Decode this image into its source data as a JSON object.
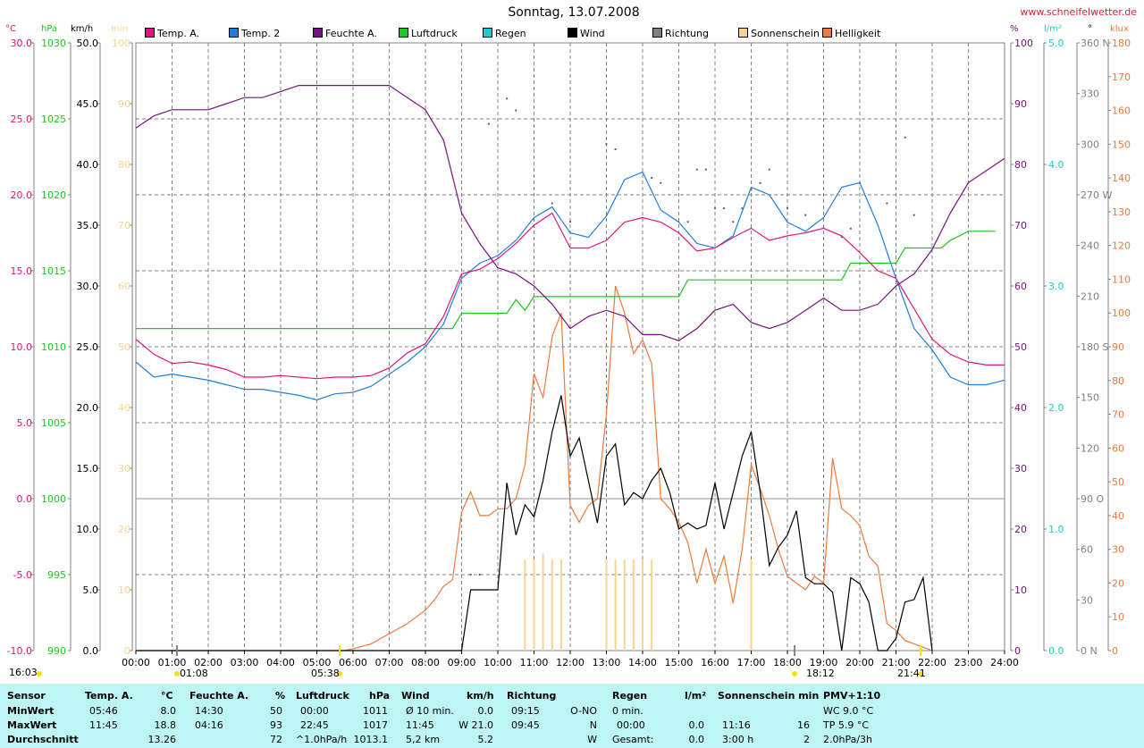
{
  "title": "Sonntag, 13.07.2008",
  "site": "www.schneifelwetter.de",
  "headers": {
    "temp_unit": "°C",
    "press_unit": "hPa",
    "wind_unit": "km/h",
    "sun_unit": "min",
    "hum_unit": "%",
    "rain_unit": "l/m²",
    "dir_unit": "°",
    "light_unit": "klux"
  },
  "legend": [
    {
      "label": "Temp. A.",
      "color": "#e0157b"
    },
    {
      "label": "Temp. 2",
      "color": "#1e7fdc"
    },
    {
      "label": "Feuchte A.",
      "color": "#7a0f83"
    },
    {
      "label": "Luftdruck",
      "color": "#1cc81c"
    },
    {
      "label": "Regen",
      "color": "#1ccfcf"
    },
    {
      "label": "Wind",
      "color": "#000000"
    },
    {
      "label": "Richtung",
      "color": "#808080"
    },
    {
      "label": "Sonnenschein",
      "color": "#f8d490"
    },
    {
      "label": "Helligkeit",
      "color": "#f07838"
    }
  ],
  "colors": {
    "temp_a": "#e0157b",
    "temp_2": "#1e7fdc",
    "humidity": "#7a0f83",
    "pressure": "#1cc81c",
    "rain": "#1ccfcf",
    "wind": "#000000",
    "direction": "#606060",
    "sun": "#f8d490",
    "light": "#f07838",
    "stats_bg": "#bdf5f5"
  },
  "chart_data": {
    "type": "line",
    "x_ticks": [
      "00:00",
      "01:00",
      "02:00",
      "03:00",
      "04:00",
      "05:00",
      "06:00",
      "07:00",
      "08:00",
      "09:00",
      "10:00",
      "11:00",
      "12:00",
      "13:00",
      "14:00",
      "15:00",
      "16:00",
      "17:00",
      "18:00",
      "19:00",
      "20:00",
      "21:00",
      "22:00",
      "23:00",
      "24:00"
    ],
    "axes": {
      "temp": {
        "range": [
          -10,
          30
        ],
        "ticks": [
          "30.0",
          "25.0",
          "20.0",
          "15.0",
          "10.0",
          "5.0",
          "0.0",
          "-5.0",
          "-10.0"
        ]
      },
      "pressure": {
        "range": [
          990,
          1030
        ],
        "ticks": [
          "1030",
          "1025",
          "1020",
          "1015",
          "1010",
          "1005",
          "1000",
          "995",
          "990"
        ]
      },
      "wind": {
        "range": [
          0,
          50
        ],
        "ticks": [
          "50.0",
          "45.0",
          "40.0",
          "35.0",
          "30.0",
          "25.0",
          "20.0",
          "15.0",
          "10.0",
          "5.0",
          "0.0"
        ]
      },
      "sun": {
        "range": [
          0,
          100
        ],
        "ticks": [
          "100",
          "90",
          "80",
          "70",
          "60",
          "50",
          "40",
          "30",
          "20",
          "10",
          "0"
        ]
      },
      "humidity": {
        "range": [
          0,
          100
        ],
        "ticks": [
          "100",
          "90",
          "80",
          "70",
          "60",
          "50",
          "40",
          "30",
          "20",
          "10",
          "0"
        ]
      },
      "rain": {
        "range": [
          0,
          5
        ],
        "ticks": [
          "5.0",
          "4.0",
          "3.0",
          "2.0",
          "1.0",
          "0.0"
        ]
      },
      "direction": {
        "range": [
          0,
          360
        ],
        "ticks": [
          "360 N",
          "330",
          "300",
          "270 W",
          "240",
          "210",
          "180 S",
          "150",
          "120",
          "90 O",
          "60",
          "30",
          "0 N"
        ]
      },
      "light": {
        "range": [
          0,
          180
        ],
        "ticks": [
          "180",
          "170",
          "160",
          "150",
          "140",
          "130",
          "120",
          "110",
          "100",
          "90",
          "80",
          "70",
          "60",
          "50",
          "40",
          "30",
          "20",
          "10",
          "0"
        ]
      }
    },
    "series": [
      {
        "name": "Temp. A.",
        "axis": "temp",
        "x": [
          0,
          0.5,
          1,
          1.5,
          2,
          2.5,
          3,
          3.5,
          4,
          4.5,
          5,
          5.5,
          6,
          6.5,
          7,
          7.5,
          8,
          8.5,
          9,
          9.5,
          10,
          10.5,
          11,
          11.5,
          12,
          12.5,
          13,
          13.5,
          14,
          14.5,
          15,
          15.5,
          16,
          16.5,
          17,
          17.5,
          18,
          18.5,
          19,
          19.5,
          20,
          20.5,
          21,
          21.5,
          22,
          22.5,
          23,
          23.5,
          24
        ],
        "y": [
          10.5,
          9.5,
          8.9,
          9.0,
          8.8,
          8.5,
          8.0,
          8.0,
          8.1,
          8.0,
          7.9,
          8.0,
          8.0,
          8.1,
          8.6,
          9.6,
          10.2,
          12.0,
          14.8,
          15.1,
          15.8,
          16.8,
          18.0,
          18.8,
          16.5,
          16.5,
          17.0,
          18.2,
          18.5,
          18.2,
          17.5,
          16.3,
          16.5,
          17.2,
          17.8,
          17.0,
          17.3,
          17.5,
          17.8,
          17.3,
          16.2,
          15.0,
          14.5,
          12.5,
          10.5,
          9.5,
          9.0,
          8.8,
          8.8
        ]
      },
      {
        "name": "Temp. 2",
        "axis": "temp",
        "x": [
          0,
          0.5,
          1,
          1.5,
          2,
          2.5,
          3,
          3.5,
          4,
          4.5,
          5,
          5.5,
          6,
          6.5,
          7,
          7.5,
          8,
          8.5,
          9,
          9.5,
          10,
          10.5,
          11,
          11.5,
          12,
          12.5,
          13,
          13.5,
          14,
          14.5,
          15,
          15.5,
          16,
          16.5,
          17,
          17.5,
          18,
          18.5,
          19,
          19.5,
          20,
          20.5,
          21,
          21.5,
          22,
          22.5,
          23,
          23.5,
          24
        ],
        "y": [
          9.0,
          8.0,
          8.2,
          8.0,
          7.8,
          7.5,
          7.2,
          7.2,
          7.0,
          6.8,
          6.5,
          6.9,
          7.0,
          7.4,
          8.2,
          9.0,
          10.0,
          11.5,
          14.5,
          15.5,
          16.0,
          17.0,
          18.5,
          19.2,
          17.5,
          17.2,
          18.6,
          21.0,
          21.5,
          19.0,
          18.2,
          16.8,
          16.5,
          17.3,
          20.5,
          20.0,
          18.2,
          17.6,
          18.5,
          20.5,
          20.8,
          18.0,
          14.5,
          11.2,
          9.8,
          8.0,
          7.5,
          7.5,
          7.8
        ]
      },
      {
        "name": "Feuchte A.",
        "axis": "humidity",
        "x": [
          0,
          0.5,
          1,
          1.5,
          2,
          2.5,
          3,
          3.5,
          4,
          4.5,
          5,
          5.5,
          6,
          6.5,
          7,
          7.5,
          8,
          8.5,
          9,
          9.5,
          10,
          10.5,
          11,
          11.5,
          12,
          12.5,
          13,
          13.5,
          14,
          14.5,
          15,
          15.5,
          16,
          16.5,
          17,
          17.5,
          18,
          18.5,
          19,
          19.5,
          20,
          20.5,
          21,
          21.5,
          22,
          22.5,
          23,
          23.5,
          24
        ],
        "y": [
          86,
          88,
          89,
          89,
          89,
          90,
          91,
          91,
          92,
          93,
          93,
          93,
          93,
          93,
          93,
          91,
          89,
          84,
          72,
          67,
          63,
          62,
          60,
          57,
          53,
          55,
          56,
          55,
          52,
          52,
          51,
          53,
          56,
          57,
          54,
          53,
          54,
          56,
          58,
          56,
          56,
          57,
          60,
          62,
          66,
          72,
          77,
          79,
          81
        ]
      },
      {
        "name": "Luftdruck",
        "axis": "pressure",
        "x": [
          0,
          8.75,
          9.0,
          10.25,
          10.5,
          10.75,
          11.0,
          15.0,
          15.25,
          19.5,
          19.75,
          21.0,
          21.25,
          22.25,
          22.5,
          23.0,
          23.75
        ],
        "y": [
          1011.2,
          1011.2,
          1012.2,
          1012.2,
          1013.1,
          1012.4,
          1013.3,
          1013.3,
          1014.4,
          1014.4,
          1015.5,
          1015.5,
          1016.5,
          1016.5,
          1017.0,
          1017.6,
          1017.6
        ]
      },
      {
        "name": "Wind",
        "axis": "wind",
        "x": [
          0,
          9.0,
          9.25,
          9.5,
          9.75,
          10.0,
          10.25,
          10.5,
          10.75,
          11.0,
          11.25,
          11.5,
          11.75,
          12.0,
          12.25,
          12.5,
          12.75,
          13.0,
          13.25,
          13.5,
          13.75,
          14.0,
          14.25,
          14.5,
          14.75,
          15.0,
          15.25,
          15.5,
          15.75,
          16.0,
          16.25,
          16.5,
          16.75,
          17.0,
          17.25,
          17.5,
          17.75,
          18.0,
          18.25,
          18.5,
          18.75,
          19.0,
          19.25,
          19.5,
          19.75,
          20.0,
          20.25,
          20.5,
          20.75,
          21.0,
          21.25,
          21.5,
          21.75,
          22.0
        ],
        "y": [
          0,
          0,
          5.0,
          5.0,
          5.0,
          5.0,
          13.8,
          9.5,
          12.0,
          11.0,
          14.0,
          18.0,
          21.0,
          16.0,
          17.5,
          14.0,
          10.5,
          16.0,
          17.0,
          12.0,
          13.0,
          12.5,
          14.0,
          15.0,
          13.0,
          10.0,
          10.5,
          10.0,
          10.3,
          13.8,
          10.0,
          13.0,
          16.0,
          18.0,
          13.0,
          7.0,
          8.5,
          9.5,
          11.5,
          6.0,
          5.5,
          5.5,
          4.8,
          0,
          6.0,
          5.5,
          4.0,
          0,
          0,
          1.0,
          4.0,
          4.2,
          6.0,
          0
        ]
      },
      {
        "name": "Helligkeit",
        "axis": "light",
        "x": [
          0,
          5.75,
          6.0,
          6.5,
          7.0,
          7.5,
          8.0,
          8.25,
          8.5,
          8.75,
          9.0,
          9.25,
          9.5,
          9.75,
          10.0,
          10.25,
          10.5,
          10.75,
          11.0,
          11.25,
          11.5,
          11.75,
          12.0,
          12.25,
          12.5,
          12.75,
          13.0,
          13.25,
          13.5,
          13.75,
          14.0,
          14.25,
          14.5,
          14.75,
          15.0,
          15.25,
          15.5,
          15.75,
          16.0,
          16.25,
          16.5,
          16.75,
          17.0,
          17.25,
          17.5,
          17.75,
          18.0,
          18.25,
          18.5,
          18.75,
          19.0,
          19.25,
          19.5,
          19.75,
          20.0,
          20.25,
          20.5,
          20.75,
          21.0,
          21.25,
          21.5,
          21.75,
          22.0
        ],
        "y": [
          0,
          0,
          0.5,
          2,
          5,
          8,
          12,
          15,
          19,
          21,
          41,
          47,
          40,
          40,
          42,
          42,
          45,
          55,
          82,
          75,
          93,
          100,
          43,
          38,
          43,
          45,
          70,
          108,
          100,
          88,
          92,
          85,
          45,
          42,
          38,
          32,
          20,
          30,
          20,
          28,
          14,
          30,
          55,
          48,
          40,
          30,
          22,
          20,
          18,
          22,
          20,
          57,
          42,
          40,
          37,
          28,
          25,
          8,
          6,
          3,
          2,
          1,
          0
        ]
      }
    ],
    "sun_bars_x": [
      10.75,
      11.0,
      11.25,
      11.5,
      11.75,
      13.0,
      13.25,
      13.5,
      13.75,
      14.0,
      14.25,
      17.0
    ],
    "sun_bars_height_min": [
      15,
      15,
      16,
      15,
      15,
      15,
      15,
      15,
      15,
      15,
      15,
      15
    ],
    "direction_points": {
      "x": [
        9.25,
        9.5,
        9.75,
        10.25,
        10.5,
        11.5,
        12.0,
        13.0,
        13.25,
        14.25,
        14.5,
        15.25,
        15.5,
        15.75,
        16.0,
        16.25,
        16.5,
        16.75,
        17.0,
        17.25,
        17.5,
        18.0,
        18.5,
        19.5,
        19.75,
        20.0,
        20.75,
        21.25,
        21.5
      ],
      "y": [
        45,
        45,
        312,
        327,
        320,
        265,
        254,
        300,
        297,
        280,
        277,
        254,
        285,
        285,
        262,
        262,
        254,
        262,
        273,
        277,
        285,
        262,
        258,
        245,
        250,
        277,
        265,
        304,
        258
      ]
    },
    "markers": {
      "sunrise": "05:38",
      "sunset": "21:41",
      "moonrise": "01:08",
      "moonset": "18:12",
      "bottom_left": "16:03"
    }
  },
  "stats": {
    "headers": {
      "sensor": "Sensor",
      "temp": "Temp. A.",
      "temp_unit": "°C",
      "hum": "Feuchte A.",
      "hum_unit": "%",
      "press": "Luftdruck",
      "press_unit": "hPa",
      "wind": "Wind",
      "wind_unit": "km/h",
      "dir": "Richtung",
      "rain": "Regen",
      "rain_unit": "l/m²",
      "sun": "Sonnenschein min",
      "pmv": "PMV+1:10"
    },
    "rows": [
      {
        "label": "MinWert",
        "temp_t": "05:46",
        "temp_v": "8.0",
        "hum_t": "14:30",
        "hum_v": "50",
        "press_t": "00:00",
        "press_v": "1011",
        "wind_t": "Ø 10 min.",
        "wind_v": "0.0",
        "dir_t": "09:15",
        "dir_v": "O-NO",
        "rain_t": "0 min.",
        "rain_v": "",
        "sun_t": "",
        "sun_v": "",
        "pmv": "WC 9.0 °C"
      },
      {
        "label": "MaxWert",
        "temp_t": "11:45",
        "temp_v": "18.8",
        "hum_t": "04:16",
        "hum_v": "93",
        "press_t": "22:45",
        "press_v": "1017",
        "wind_t": "11:45",
        "wind_v": "W 21.0",
        "dir_t": "09:45",
        "dir_v": "N",
        "rain_t": "00:00",
        "rain_v": "0.0",
        "sun_t": "11:16",
        "sun_v": "16",
        "pmv": "TP 5.9 °C"
      },
      {
        "label": "Durchschnitt",
        "temp_t": "",
        "temp_v": "13.26",
        "hum_t": "",
        "hum_v": "72",
        "press_t": "^1.0hPa/h",
        "press_v": "1013.1",
        "wind_t": "5,2 km",
        "wind_v": "5.2",
        "dir_t": "",
        "dir_v": "W",
        "rain_t": "Gesamt:",
        "rain_v": "0.0",
        "sun_t": "3:00 h",
        "sun_v": "2",
        "pmv": "2.0hPa/3h"
      }
    ]
  }
}
